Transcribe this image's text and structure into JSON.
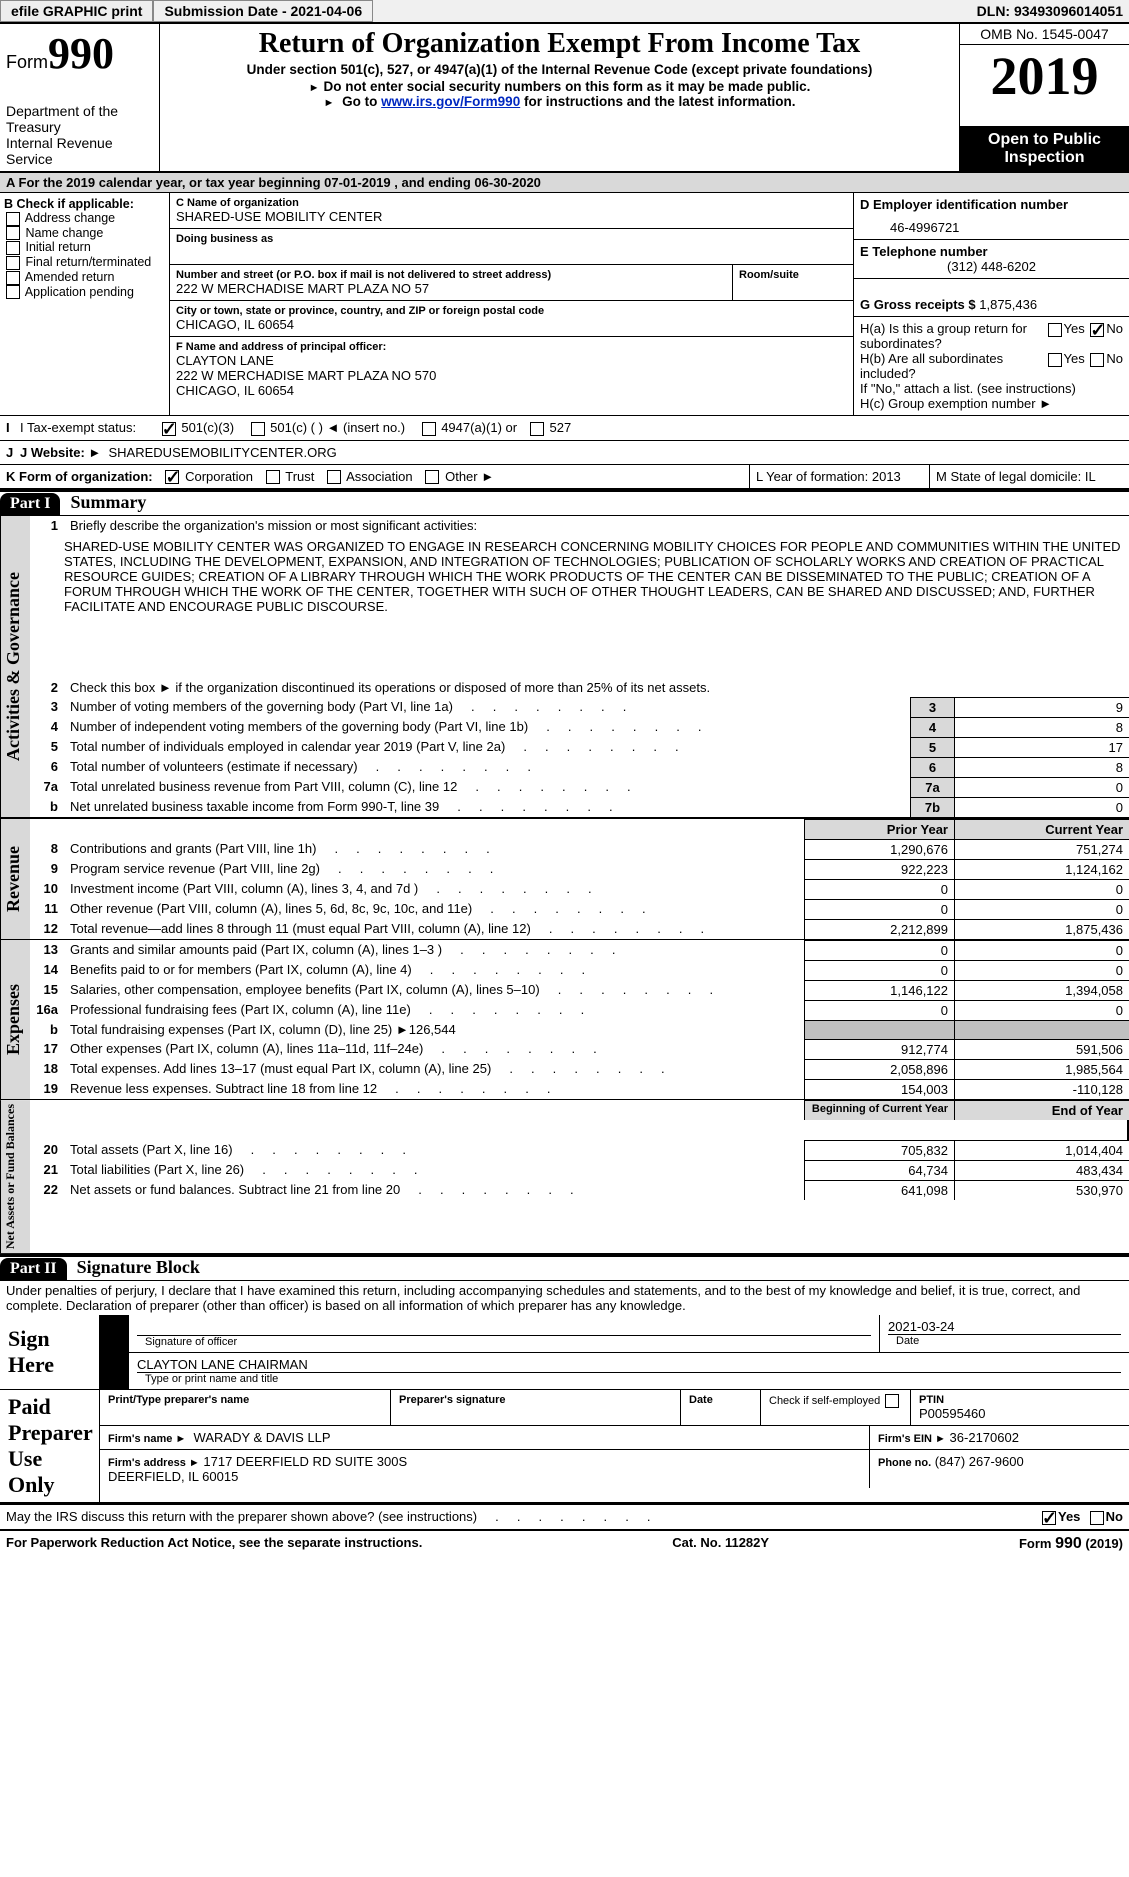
{
  "topbar": {
    "efile": "efile GRAPHIC print",
    "submission": "Submission Date - 2021-04-06",
    "dln": "DLN: 93493096014051"
  },
  "header": {
    "form_word": "Form",
    "form_no": "990",
    "title": "Return of Organization Exempt From Income Tax",
    "subtitle": "Under section 501(c), 527, or 4947(a)(1) of the Internal Revenue Code (except private foundations)",
    "instr1": "Do not enter social security numbers on this form as it may be made public.",
    "instr2_pre": "Go to ",
    "instr2_link": "www.irs.gov/Form990",
    "instr2_post": " for instructions and the latest information.",
    "dept": "Department of the Treasury\nInternal Revenue Service",
    "omb": "OMB No. 1545-0047",
    "year": "2019",
    "open": "Open to Public Inspection"
  },
  "lineA": "A For the 2019 calendar year, or tax year beginning 07-01-2019   , and ending 06-30-2020",
  "colB": {
    "head": "B Check if applicable:",
    "items": [
      "Address change",
      "Name change",
      "Initial return",
      "Final return/terminated",
      "Amended return",
      "Application pending"
    ]
  },
  "colC": {
    "name_label": "C Name of organization",
    "name": "SHARED-USE MOBILITY CENTER",
    "dba_label": "Doing business as",
    "street_label": "Number and street (or P.O. box if mail is not delivered to street address)",
    "street": "222 W MERCHADISE MART PLAZA NO 57",
    "room_label": "Room/suite",
    "city_label": "City or town, state or province, country, and ZIP or foreign postal code",
    "city": "CHICAGO, IL  60654",
    "officer_label": "F  Name and address of principal officer:",
    "officer": "CLAYTON LANE\n222 W MERCHADISE MART PLAZA NO 570\nCHICAGO, IL  60654"
  },
  "colD": {
    "ein_label": "D Employer identification number",
    "ein": "46-4996721",
    "phone_label": "E Telephone number",
    "phone": "(312) 448-6202",
    "gross_label": "G Gross receipts $",
    "gross": "1,875,436",
    "ha": "H(a)  Is this a group return for subordinates?",
    "hb": "H(b)  Are all subordinates included?",
    "hb_note": "If \"No,\" attach a list. (see instructions)",
    "hc": "H(c)  Group exemption number ►",
    "yes": "Yes",
    "no": "No"
  },
  "rowI": {
    "label": "I  Tax-exempt status:",
    "o1": "501(c)(3)",
    "o2": "501(c) (  )   ◄ (insert no.)",
    "o3": "4947(a)(1) or",
    "o4": "527"
  },
  "rowJ": {
    "label": "J  Website: ►",
    "val": "SHAREDUSEMOBILITYCENTER.ORG"
  },
  "rowK": {
    "label": "K Form of organization:",
    "opts": [
      "Corporation",
      "Trust",
      "Association",
      "Other ►"
    ],
    "L": "L Year of formation: 2013",
    "M": "M State of legal domicile: IL"
  },
  "parts": {
    "p1": "Part I",
    "p1t": "Summary",
    "p2": "Part II",
    "p2t": "Signature Block"
  },
  "vtabs": {
    "ag": "Activities & Governance",
    "rev": "Revenue",
    "exp": "Expenses",
    "nab": "Net Assets or Fund Balances"
  },
  "summary": {
    "l1_label": "Briefly describe the organization's mission or most significant activities:",
    "l1": "SHARED-USE MOBILITY CENTER WAS ORGANIZED TO ENGAGE IN RESEARCH CONCERNING MOBILITY CHOICES FOR PEOPLE AND COMMUNITIES WITHIN THE UNITED STATES, INCLUDING THE DEVELOPMENT, EXPANSION, AND INTEGRATION OF TECHNOLOGIES; PUBLICATION OF SCHOLARLY WORKS AND CREATION OF PRACTICAL RESOURCE GUIDES; CREATION OF A LIBRARY THROUGH WHICH THE WORK PRODUCTS OF THE CENTER CAN BE DISSEMINATED TO THE PUBLIC; CREATION OF A FORUM THROUGH WHICH THE WORK OF THE CENTER, TOGETHER WITH SUCH OF OTHER THOUGHT LEADERS, CAN BE SHARED AND DISCUSSED; AND, FURTHER FACILITATE AND ENCOURAGE PUBLIC DISCOURSE.",
    "l2": "Check this box ►       if the organization discontinued its operations or disposed of more than 25% of its net assets.",
    "rows": [
      {
        "n": "3",
        "t": "Number of voting members of the governing body (Part VI, line 1a)",
        "b": "3",
        "v": "9"
      },
      {
        "n": "4",
        "t": "Number of independent voting members of the governing body (Part VI, line 1b)",
        "b": "4",
        "v": "8"
      },
      {
        "n": "5",
        "t": "Total number of individuals employed in calendar year 2019 (Part V, line 2a)",
        "b": "5",
        "v": "17"
      },
      {
        "n": "6",
        "t": "Total number of volunteers (estimate if necessary)",
        "b": "6",
        "v": "8"
      },
      {
        "n": "7a",
        "t": "Total unrelated business revenue from Part VIII, column (C), line 12",
        "b": "7a",
        "v": "0"
      },
      {
        "n": "b",
        "t": "Net unrelated business taxable income from Form 990-T, line 39",
        "b": "7b",
        "v": "0"
      }
    ],
    "col_hdr": {
      "py": "Prior Year",
      "cy": "Current Year"
    },
    "rev": [
      {
        "n": "8",
        "t": "Contributions and grants (Part VIII, line 1h)",
        "p": "1,290,676",
        "c": "751,274"
      },
      {
        "n": "9",
        "t": "Program service revenue (Part VIII, line 2g)",
        "p": "922,223",
        "c": "1,124,162"
      },
      {
        "n": "10",
        "t": "Investment income (Part VIII, column (A), lines 3, 4, and 7d )",
        "p": "0",
        "c": "0"
      },
      {
        "n": "11",
        "t": "Other revenue (Part VIII, column (A), lines 5, 6d, 8c, 9c, 10c, and 11e)",
        "p": "0",
        "c": "0"
      },
      {
        "n": "12",
        "t": "Total revenue—add lines 8 through 11 (must equal Part VIII, column (A), line 12)",
        "p": "2,212,899",
        "c": "1,875,436"
      }
    ],
    "exp": [
      {
        "n": "13",
        "t": "Grants and similar amounts paid (Part IX, column (A), lines 1–3 )",
        "p": "0",
        "c": "0"
      },
      {
        "n": "14",
        "t": "Benefits paid to or for members (Part IX, column (A), line 4)",
        "p": "0",
        "c": "0"
      },
      {
        "n": "15",
        "t": "Salaries, other compensation, employee benefits (Part IX, column (A), lines 5–10)",
        "p": "1,146,122",
        "c": "1,394,058"
      },
      {
        "n": "16a",
        "t": "Professional fundraising fees (Part IX, column (A), line 11e)",
        "p": "0",
        "c": "0"
      },
      {
        "n": "b",
        "t": "Total fundraising expenses (Part IX, column (D), line 25) ►126,544",
        "p": "",
        "c": "",
        "grey": true
      },
      {
        "n": "17",
        "t": "Other expenses (Part IX, column (A), lines 11a–11d, 11f–24e)",
        "p": "912,774",
        "c": "591,506"
      },
      {
        "n": "18",
        "t": "Total expenses. Add lines 13–17 (must equal Part IX, column (A), line 25)",
        "p": "2,058,896",
        "c": "1,985,564"
      },
      {
        "n": "19",
        "t": "Revenue less expenses. Subtract line 18 from line 12",
        "p": "154,003",
        "c": "-110,128"
      }
    ],
    "nab_hdr": {
      "b": "Beginning of Current Year",
      "e": "End of Year"
    },
    "nab": [
      {
        "n": "20",
        "t": "Total assets (Part X, line 16)",
        "p": "705,832",
        "c": "1,014,404"
      },
      {
        "n": "21",
        "t": "Total liabilities (Part X, line 26)",
        "p": "64,734",
        "c": "483,434"
      },
      {
        "n": "22",
        "t": "Net assets or fund balances. Subtract line 21 from line 20",
        "p": "641,098",
        "c": "530,970"
      }
    ]
  },
  "sig": {
    "declaration": "Under penalties of perjury, I declare that I have examined this return, including accompanying schedules and statements, and to the best of my knowledge and belief, it is true, correct, and complete. Declaration of preparer (other than officer) is based on all information of which preparer has any knowledge.",
    "sign_here": "Sign Here",
    "sig_officer": "Signature of officer",
    "date": "Date",
    "date_val": "2021-03-24",
    "name_title": "CLAYTON LANE  CHAIRMAN",
    "name_label": "Type or print name and title",
    "paid": "Paid Preparer Use Only",
    "prep_name_label": "Print/Type preparer's name",
    "prep_sig_label": "Preparer's signature",
    "date_label": "Date",
    "check_label": "Check         if self-employed",
    "ptin_label": "PTIN",
    "ptin": "P00595460",
    "firm_name_label": "Firm's name    ►",
    "firm_name": "WARADY & DAVIS LLP",
    "firm_ein_label": "Firm's EIN ►",
    "firm_ein": "36-2170602",
    "firm_addr_label": "Firm's address ►",
    "firm_addr": "1717 DEERFIELD RD SUITE 300S\nDEERFIELD, IL  60015",
    "phone_label": "Phone no.",
    "phone": "(847) 267-9600",
    "discuss": "May the IRS discuss this return with the preparer shown above? (see instructions)"
  },
  "footer": {
    "left": "For Paperwork Reduction Act Notice, see the separate instructions.",
    "mid": "Cat. No. 11282Y",
    "right_a": "Form ",
    "right_b": "990",
    "right_c": " (2019)"
  }
}
